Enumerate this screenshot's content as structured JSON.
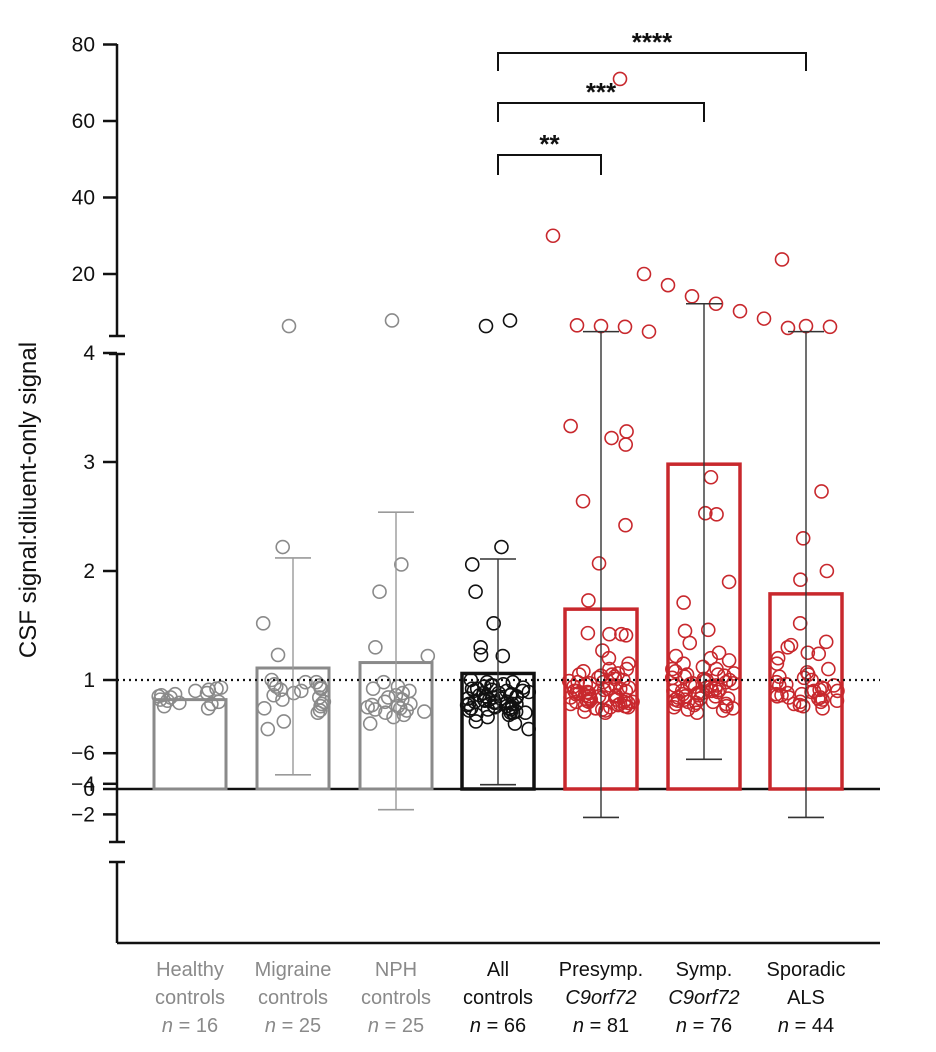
{
  "chart_data": {
    "type": "bar",
    "ylabel": "CSF signal:diluent-only signal",
    "reference_line": 1,
    "axis_segments": {
      "upper": {
        "ticks": [
          20,
          40,
          60,
          80
        ],
        "ylim": [
          0,
          80
        ]
      },
      "main": {
        "ticks": [
          0,
          1,
          2,
          3,
          4
        ],
        "ylim": [
          -0.6,
          4
        ]
      },
      "lower": {
        "ticks": [
          -2,
          -4,
          -6
        ],
        "ylim": [
          -6.5,
          -1
        ]
      }
    },
    "groups": [
      {
        "line1": "Healthy",
        "line2": "controls",
        "n_label": "n",
        "n_text": " = 16",
        "color": "#8a8a8a",
        "mean": 0.82,
        "err_low": null,
        "err_high": null,
        "points": [
          0.76,
          0.78,
          0.8,
          0.82,
          0.85,
          0.86,
          0.88,
          0.9,
          0.92,
          0.74,
          0.79,
          0.84,
          0.87,
          0.91,
          0.93,
          0.81
        ]
      },
      {
        "line1": "Migraine",
        "line2": "controls",
        "n_label": "n",
        "n_text": " = 25",
        "color": "#8a8a8a",
        "mean": 1.11,
        "err_low": 0.13,
        "err_high": 2.12,
        "outliers": [
          6
        ],
        "points": [
          2.22,
          1.52,
          1.23,
          1.0,
          0.98,
          0.96,
          0.95,
          0.94,
          0.93,
          0.92,
          0.91,
          0.9,
          0.88,
          0.86,
          0.84,
          0.82,
          0.8,
          0.78,
          0.76,
          0.74,
          0.72,
          0.7,
          0.62,
          0.55,
          0.98
        ]
      },
      {
        "line1": "NPH",
        "line2": "controls",
        "n_label": "n",
        "n_text": " = 25",
        "color": "#8a8a8a",
        "mean": 1.16,
        "err_low": -0.19,
        "err_high": 2.54,
        "outliers": [
          7.5
        ],
        "points": [
          2.06,
          1.81,
          1.3,
          1.22,
          0.98,
          0.94,
          0.9,
          0.88,
          0.86,
          0.84,
          0.82,
          0.8,
          0.78,
          0.77,
          0.76,
          0.75,
          0.74,
          0.73,
          0.72,
          0.71,
          0.7,
          0.68,
          0.66,
          0.6,
          0.92
        ]
      },
      {
        "line1": "All",
        "line2": "controls",
        "n_label": "n",
        "n_text": " = 66",
        "color": "#111111",
        "mean": 1.06,
        "err_low": 0.04,
        "err_high": 2.11,
        "outliers": [
          6,
          7.5
        ],
        "points": [
          2.22,
          2.06,
          1.81,
          1.52,
          1.3,
          1.23,
          1.22,
          1.0,
          0.98,
          0.96,
          0.95,
          0.94,
          0.93,
          0.92,
          0.91,
          0.9,
          0.9,
          0.89,
          0.88,
          0.87,
          0.86,
          0.86,
          0.85,
          0.84,
          0.84,
          0.83,
          0.82,
          0.82,
          0.81,
          0.8,
          0.8,
          0.79,
          0.78,
          0.78,
          0.77,
          0.76,
          0.76,
          0.75,
          0.74,
          0.74,
          0.73,
          0.72,
          0.71,
          0.7,
          0.7,
          0.68,
          0.66,
          0.62,
          0.6,
          0.55,
          0.98,
          0.95,
          0.92,
          0.9,
          0.88,
          0.85,
          0.83,
          0.8,
          0.78,
          0.75,
          0.73,
          0.7,
          0.68
        ]
      },
      {
        "line1": "Presymp.",
        "line2": "C9orf72",
        "line2_italic": true,
        "n_label": "n",
        "n_text": " = 81",
        "color": "#c8282d",
        "mean": 1.65,
        "err_low": -1.8,
        "err_high": 4.5,
        "outliers": [
          30,
          6.2,
          6.0,
          5.8,
          4.5
        ],
        "points": [
          3.33,
          3.28,
          3.22,
          3.16,
          2.64,
          2.42,
          2.07,
          1.73,
          1.43,
          1.42,
          1.42,
          1.41,
          1.27,
          1.2,
          1.15,
          1.1,
          1.08,
          1.06,
          1.05,
          1.04,
          1.03,
          1.02,
          1.01,
          1.0,
          0.99,
          0.98,
          0.97,
          0.96,
          0.95,
          0.94,
          0.93,
          0.92,
          0.91,
          0.9,
          0.9,
          0.89,
          0.88,
          0.87,
          0.86,
          0.85,
          0.85,
          0.84,
          0.83,
          0.82,
          0.82,
          0.81,
          0.8,
          0.8,
          0.79,
          0.78,
          0.77,
          0.76,
          0.75,
          0.74,
          0.73,
          0.72,
          0.71,
          0.7,
          0.95,
          0.92,
          0.88,
          0.86,
          0.84,
          0.8,
          0.78,
          0.76,
          0.74,
          1.1,
          1.05,
          0.98,
          0.9,
          0.85,
          0.82,
          0.8,
          0.77,
          0.75
        ]
      },
      {
        "line1": "Symp.",
        "line2": "C9orf72",
        "line2_italic": true,
        "n_label": "n",
        "n_text": " = 76",
        "color": "#c8282d",
        "mean": 2.98,
        "err_low": -5.6,
        "err_high": 12,
        "outliers": [
          71,
          20,
          17,
          14,
          12,
          10,
          8,
          5.5
        ],
        "points": [
          2.86,
          2.53,
          2.52,
          1.9,
          1.71,
          1.46,
          1.45,
          1.34,
          1.25,
          1.22,
          1.2,
          1.18,
          1.15,
          1.12,
          1.1,
          1.08,
          1.06,
          1.05,
          1.04,
          1.03,
          1.02,
          1.01,
          1.0,
          0.99,
          0.98,
          0.97,
          0.96,
          0.95,
          0.94,
          0.93,
          0.92,
          0.91,
          0.9,
          0.89,
          0.88,
          0.87,
          0.86,
          0.85,
          0.84,
          0.83,
          0.82,
          0.81,
          0.8,
          0.79,
          0.78,
          0.77,
          0.76,
          0.75,
          0.74,
          0.73,
          0.72,
          0.7,
          1.0,
          0.97,
          0.94,
          0.9,
          0.88,
          0.85,
          0.82,
          0.8,
          0.78,
          1.1,
          1.05,
          0.95,
          0.9,
          0.86,
          0.83
        ]
      },
      {
        "line1": "Sporadic",
        "line2": "ALS",
        "n_label": "n",
        "n_text": " = 44",
        "color": "#c8282d",
        "mean": 1.79,
        "err_low": -1.8,
        "err_high": 4.5,
        "outliers": [
          23.8,
          6.0,
          5.8
        ],
        "points": [
          2.73,
          2.3,
          2.0,
          1.92,
          1.52,
          1.35,
          1.32,
          1.3,
          1.25,
          1.24,
          1.2,
          1.15,
          1.1,
          1.07,
          1.05,
          1.03,
          1.02,
          1.0,
          0.98,
          0.96,
          0.95,
          0.93,
          0.92,
          0.91,
          0.9,
          0.89,
          0.88,
          0.87,
          0.86,
          0.85,
          0.84,
          0.83,
          0.82,
          0.81,
          0.8,
          0.78,
          0.76,
          0.74,
          0.95,
          0.9,
          0.87,
          0.84,
          0.8,
          0.77
        ]
      }
    ],
    "brackets": [
      {
        "from": 3,
        "to": 4,
        "label": "**"
      },
      {
        "from": 3,
        "to": 5,
        "label": "***"
      },
      {
        "from": 3,
        "to": 6,
        "label": "****"
      }
    ]
  }
}
